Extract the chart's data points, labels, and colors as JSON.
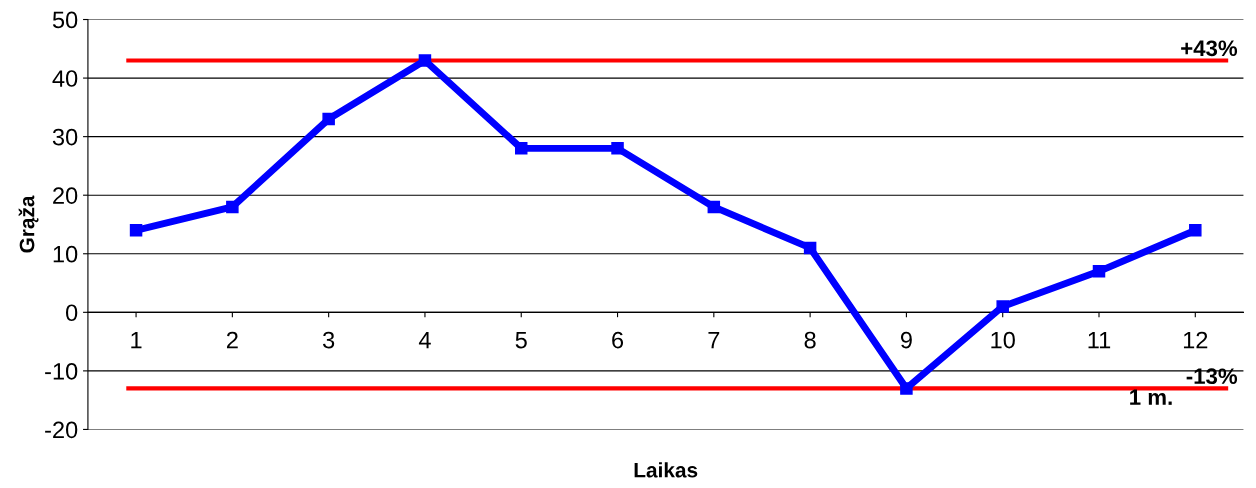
{
  "chart_data": {
    "type": "line",
    "xlabel": "Laikas",
    "ylabel": "Grąža",
    "categories": [
      "1",
      "2",
      "3",
      "4",
      "5",
      "6",
      "7",
      "8",
      "9",
      "10",
      "11",
      "12"
    ],
    "series": [
      {
        "color": "#0000ff",
        "values": [
          14,
          18,
          33,
          43,
          28,
          28,
          18,
          11,
          -13,
          1,
          7,
          14
        ]
      }
    ],
    "ylim": [
      -20,
      50
    ],
    "yticks": [
      -20,
      -10,
      0,
      10,
      20,
      30,
      40,
      50
    ],
    "grid": "y",
    "marker": "square",
    "line_style": "solid",
    "legend": false,
    "ref_lines": [
      {
        "axis": "y",
        "value": 43,
        "label": "+43%",
        "color": "#ff0000"
      },
      {
        "axis": "y",
        "value": -13,
        "label": "-13%",
        "color": "#ff0000"
      }
    ],
    "annotations": [
      "1 m."
    ]
  }
}
